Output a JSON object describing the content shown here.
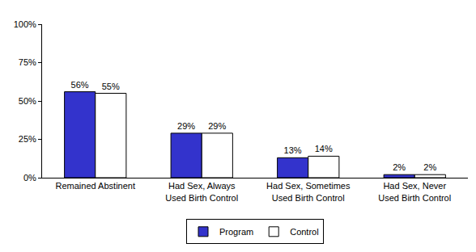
{
  "chart_data": {
    "type": "bar",
    "categories": [
      "Remained Abstinent",
      "Had Sex, Always Used Birth Control",
      "Had Sex, Sometimes Used Birth Control",
      "Had Sex, Never Used Birth Control"
    ],
    "series": [
      {
        "name": "Program",
        "color": "#3333cc",
        "values": [
          56,
          29,
          13,
          2
        ],
        "value_labels": [
          "56%",
          "29%",
          "13%",
          "2%"
        ]
      },
      {
        "name": "Control",
        "color": "#ffffff",
        "values": [
          55,
          29,
          14,
          2
        ],
        "value_labels": [
          "55%",
          "29%",
          "14%",
          "2%"
        ]
      }
    ],
    "ylim": [
      0,
      100
    ],
    "yticks": [
      {
        "value": 0,
        "label": "0%"
      },
      {
        "value": 25,
        "label": "25%"
      },
      {
        "value": 50,
        "label": "50%"
      },
      {
        "value": 75,
        "label": "75%"
      },
      {
        "value": 100,
        "label": "100%"
      }
    ],
    "grid": false,
    "legend": "bottom",
    "data_labels": true
  }
}
